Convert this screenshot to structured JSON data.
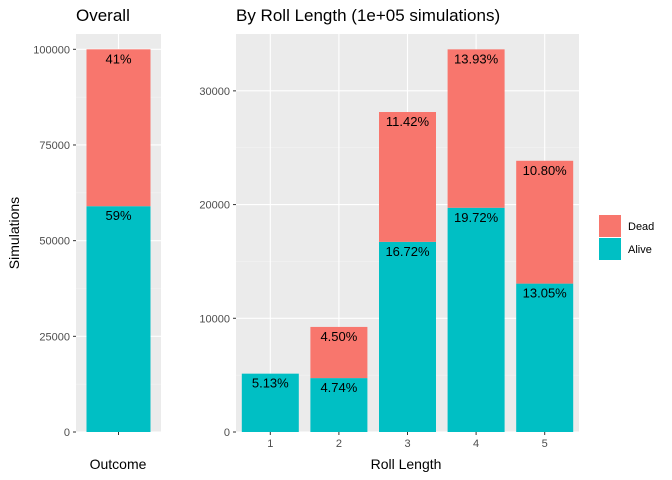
{
  "colors": {
    "panel_bg": "#ebebeb",
    "grid_major": "#ffffff",
    "grid_minor": "#f3f3f3",
    "tick_color": "#333333",
    "dead": "#f8766d",
    "alive": "#00bfc4"
  },
  "legend": {
    "placement": "right",
    "items": [
      {
        "key": "dead",
        "label": "Dead"
      },
      {
        "key": "alive",
        "label": "Alive"
      }
    ]
  },
  "chart_data": [
    {
      "type": "bar",
      "stacked": true,
      "title": "Overall",
      "xlabel": "Outcome",
      "ylabel": "Simulations",
      "categories": [
        ""
      ],
      "ylim": [
        0,
        104000
      ],
      "yticks": [
        0,
        25000,
        50000,
        75000,
        100000
      ],
      "yticklabels": [
        "0",
        "25000",
        "50000",
        "75000",
        "100000"
      ],
      "series": [
        {
          "name": "Alive",
          "key": "alive",
          "values": [
            59000
          ],
          "labels": [
            "59%"
          ]
        },
        {
          "name": "Dead",
          "key": "dead",
          "values": [
            41000
          ],
          "labels": [
            "41%"
          ]
        }
      ]
    },
    {
      "type": "bar",
      "stacked": true,
      "title": "By Roll Length (1e+05 simulations)",
      "xlabel": "Roll Length",
      "ylabel": "",
      "categories": [
        "1",
        "2",
        "3",
        "4",
        "5"
      ],
      "ylim": [
        0,
        35000
      ],
      "yticks": [
        0,
        10000,
        20000,
        30000
      ],
      "yticklabels": [
        "0",
        "10000",
        "20000",
        "30000"
      ],
      "series": [
        {
          "name": "Alive",
          "key": "alive",
          "values": [
            5130,
            4740,
            16720,
            19720,
            13050
          ],
          "labels": [
            "5.13%",
            "4.74%",
            "16.72%",
            "19.72%",
            "13.05%"
          ]
        },
        {
          "name": "Dead",
          "key": "dead",
          "values": [
            0,
            4500,
            11420,
            13930,
            10800
          ],
          "labels": [
            "",
            "4.50%",
            "11.42%",
            "13.93%",
            "10.80%"
          ]
        }
      ]
    }
  ]
}
